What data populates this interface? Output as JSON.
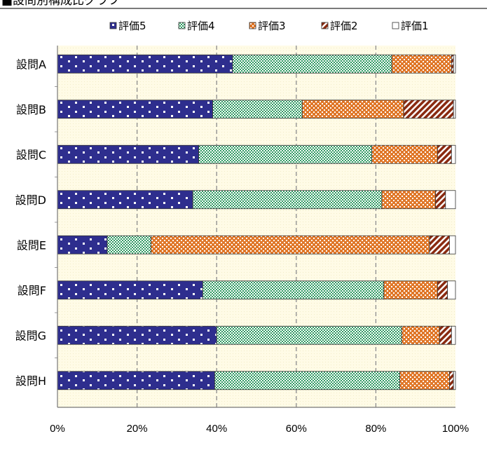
{
  "header": {
    "title": "■設問別構成比グラフ"
  },
  "chart_data": {
    "type": "bar",
    "orientation": "horizontal",
    "stacked": "percent",
    "title": "■設問別構成比グラフ",
    "categories": [
      "設問A",
      "設問B",
      "設問C",
      "設問D",
      "設問E",
      "設問F",
      "設問G",
      "設問H"
    ],
    "series": [
      {
        "name": "評価5",
        "values": [
          44,
          39,
          35.5,
          34,
          12.5,
          36.5,
          40,
          39.5
        ]
      },
      {
        "name": "評価4",
        "values": [
          40,
          22.5,
          43.5,
          47.5,
          11,
          45.5,
          46.5,
          46.5
        ]
      },
      {
        "name": "評価3",
        "values": [
          15,
          25.5,
          16.5,
          13.5,
          70,
          13.5,
          9.5,
          12.5
        ]
      },
      {
        "name": "評価2",
        "values": [
          0.5,
          12.5,
          3.5,
          2.5,
          5,
          2.5,
          3,
          1
        ]
      },
      {
        "name": "評価1",
        "values": [
          0.5,
          0.5,
          1,
          2.5,
          1.5,
          2,
          1,
          0.5
        ]
      }
    ],
    "x_ticks": [
      "0%",
      "20%",
      "40%",
      "60%",
      "80%",
      "100%"
    ],
    "xlim": [
      0,
      100
    ],
    "grid": true,
    "legend_position": "top",
    "colors": {
      "評価5": "#2e2e8e",
      "評価4": "#2f9a62",
      "評価3": "#e0782a",
      "評価2": "#8a2a10",
      "評価1": "#ffffff",
      "plot_bg": "#fffbe6"
    }
  }
}
